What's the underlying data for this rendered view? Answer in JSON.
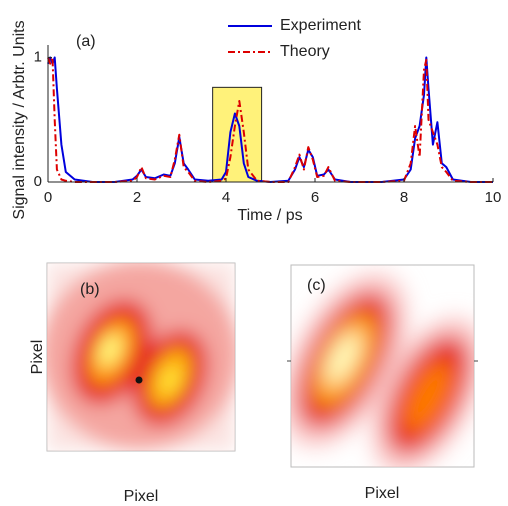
{
  "chart_data": [
    {
      "type": "line",
      "annotation": "(a)",
      "xlabel": "Time / ps",
      "ylabel": "Signal intensity / Arbtr. Units",
      "x": [
        0,
        0.05,
        0.1,
        0.15,
        0.2,
        0.3,
        0.4,
        0.6,
        1.0,
        1.5,
        1.9,
        2.0,
        2.1,
        2.2,
        2.4,
        2.6,
        2.75,
        2.85,
        2.95,
        3.05,
        3.15,
        3.3,
        3.6,
        3.9,
        4.0,
        4.1,
        4.2,
        4.3,
        4.4,
        4.5,
        4.7,
        5.0,
        5.4,
        5.55,
        5.65,
        5.75,
        5.85,
        5.95,
        6.05,
        6.2,
        6.3,
        6.45,
        6.8,
        7.5,
        8.0,
        8.15,
        8.25,
        8.35,
        8.45,
        8.5,
        8.55,
        8.65,
        8.75,
        8.85,
        8.95,
        9.1,
        9.5,
        10
      ],
      "series": [
        {
          "name": "Experiment",
          "color": "#0000dd",
          "dash": "solid",
          "values": [
            0.95,
            1.0,
            0.95,
            1.0,
            0.75,
            0.3,
            0.08,
            0.02,
            0.0,
            0.0,
            0.02,
            0.05,
            0.1,
            0.04,
            0.03,
            0.06,
            0.05,
            0.15,
            0.36,
            0.15,
            0.1,
            0.02,
            0.01,
            0.02,
            0.08,
            0.4,
            0.55,
            0.45,
            0.15,
            0.04,
            0.01,
            0.0,
            0.01,
            0.1,
            0.2,
            0.12,
            0.26,
            0.2,
            0.05,
            0.06,
            0.1,
            0.02,
            0.0,
            0.0,
            0.02,
            0.1,
            0.35,
            0.45,
            0.7,
            1.0,
            0.75,
            0.3,
            0.48,
            0.15,
            0.12,
            0.02,
            0.0,
            0.0
          ]
        },
        {
          "name": "Theory",
          "color": "#dd0000",
          "dash": "dashdot",
          "values": [
            1.0,
            0.95,
            1.0,
            0.5,
            0.1,
            0.02,
            0.01,
            0.0,
            0.0,
            0.0,
            0.01,
            0.04,
            0.12,
            0.03,
            0.02,
            0.05,
            0.04,
            0.18,
            0.38,
            0.12,
            0.08,
            0.01,
            0.0,
            0.01,
            0.03,
            0.2,
            0.45,
            0.65,
            0.4,
            0.1,
            0.01,
            0.0,
            0.0,
            0.12,
            0.22,
            0.1,
            0.28,
            0.18,
            0.04,
            0.05,
            0.12,
            0.01,
            0.0,
            0.0,
            0.01,
            0.15,
            0.45,
            0.2,
            0.9,
            0.98,
            0.5,
            0.4,
            0.3,
            0.12,
            0.08,
            0.01,
            0.0,
            0.0
          ]
        }
      ],
      "highlight": {
        "x": [
          3.7,
          4.8
        ],
        "y": [
          0,
          0.76
        ],
        "color": "#fff27a"
      },
      "xlim": [
        0,
        10
      ],
      "xticks": [
        0,
        2,
        4,
        6,
        8,
        10
      ],
      "ylim": [
        0,
        1.1
      ],
      "yticks": [
        0,
        1
      ],
      "grid": false,
      "legend": "upper right"
    },
    {
      "type": "image",
      "annotation": "(b)",
      "xlabel": "Pixel",
      "ylabel": "Pixel"
    },
    {
      "type": "image",
      "annotation": "(c)",
      "xlabel": "Pixel"
    }
  ]
}
